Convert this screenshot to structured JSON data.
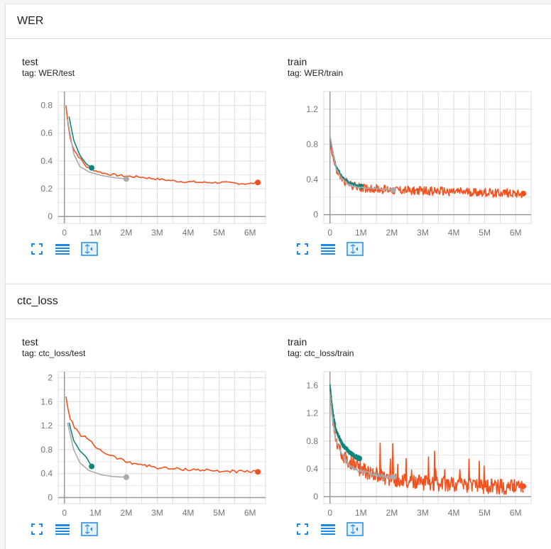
{
  "sections": [
    {
      "title": "WER",
      "cards": [
        {
          "title": "test",
          "tag": "tag: WER/test"
        },
        {
          "title": "train",
          "tag": "tag: WER/train"
        }
      ]
    },
    {
      "title": "ctc_loss",
      "cards": [
        {
          "title": "test",
          "tag": "tag: ctc_loss/test"
        },
        {
          "title": "train",
          "tag": "tag: ctc_loss/train"
        }
      ]
    }
  ],
  "colors": {
    "orange": "#f4511e",
    "teal": "#12847a",
    "gray": "#aaaaaa",
    "blue": "#1e88e5"
  },
  "icons": [
    "fit-icon",
    "log-scale-icon",
    "expand-icon"
  ],
  "chart_data": [
    {
      "type": "line",
      "title": "test",
      "xlim": [
        -0.2,
        6.5
      ],
      "ylim": [
        -0.05,
        0.9
      ],
      "xticks": [
        "0",
        "1M",
        "2M",
        "3M",
        "4M",
        "5M",
        "6M"
      ],
      "xtick_values": [
        0,
        1,
        2,
        3,
        4,
        5,
        6
      ],
      "yticks": [
        "0",
        "0.2",
        "0.4",
        "0.6",
        "0.8"
      ],
      "ytick_values": [
        0,
        0.2,
        0.4,
        0.6,
        0.8
      ],
      "series": [
        {
          "color": "orange",
          "noise": 0.008,
          "x": [
            0.05,
            0.15,
            0.3,
            0.5,
            0.7,
            1,
            1.3,
            1.6,
            2,
            2.4,
            2.8,
            3.2,
            3.6,
            4,
            4.5,
            5,
            5.5,
            6,
            6.25
          ],
          "y": [
            0.8,
            0.6,
            0.48,
            0.42,
            0.36,
            0.33,
            0.31,
            0.3,
            0.29,
            0.285,
            0.275,
            0.265,
            0.255,
            0.25,
            0.245,
            0.245,
            0.24,
            0.235,
            0.245
          ]
        },
        {
          "color": "teal",
          "noise": 0,
          "x": [
            0.15,
            0.3,
            0.5,
            0.7,
            0.88
          ],
          "y": [
            0.72,
            0.55,
            0.44,
            0.38,
            0.35
          ]
        },
        {
          "color": "gray",
          "noise": 0,
          "x": [
            0.1,
            0.3,
            0.5,
            0.8,
            1.2,
            1.6,
            2.0
          ],
          "y": [
            0.7,
            0.45,
            0.36,
            0.32,
            0.295,
            0.28,
            0.27
          ]
        }
      ]
    },
    {
      "type": "line",
      "title": "train",
      "xlim": [
        -0.2,
        6.5
      ],
      "ylim": [
        -0.1,
        1.4
      ],
      "xticks": [
        "0",
        "1M",
        "2M",
        "3M",
        "4M",
        "5M",
        "6M"
      ],
      "xtick_values": [
        0,
        1,
        2,
        3,
        4,
        5,
        6
      ],
      "yticks": [
        "0",
        "0.4",
        "0.8",
        "1.2"
      ],
      "ytick_values": [
        0,
        0.4,
        0.8,
        1.2
      ],
      "series": [
        {
          "color": "orange",
          "noise": 0.05,
          "x": [
            0,
            0.1,
            0.2,
            0.4,
            0.6,
            0.9,
            1.2,
            1.6,
            2,
            3,
            4,
            5,
            6,
            6.25
          ],
          "y": [
            0.85,
            0.65,
            0.5,
            0.4,
            0.35,
            0.31,
            0.3,
            0.29,
            0.28,
            0.27,
            0.26,
            0.25,
            0.245,
            0.24
          ]
        },
        {
          "color": "teal",
          "noise": 0.015,
          "x": [
            0,
            0.1,
            0.2,
            0.4,
            0.6,
            0.8,
            1.0
          ],
          "y": [
            0.88,
            0.7,
            0.55,
            0.43,
            0.37,
            0.34,
            0.32
          ]
        },
        {
          "color": "gray",
          "noise": 0.01,
          "x": [
            0,
            0.1,
            0.2,
            0.4,
            0.6,
            0.9,
            1.3,
            1.7,
            2.05
          ],
          "y": [
            0.9,
            0.7,
            0.52,
            0.4,
            0.34,
            0.31,
            0.3,
            0.29,
            0.28
          ]
        }
      ]
    },
    {
      "type": "line",
      "title": "test",
      "xlim": [
        -0.2,
        6.5
      ],
      "ylim": [
        -0.1,
        2.1
      ],
      "xticks": [
        "0",
        "1M",
        "2M",
        "3M",
        "4M",
        "5M",
        "6M"
      ],
      "xtick_values": [
        0,
        1,
        2,
        3,
        4,
        5,
        6
      ],
      "yticks": [
        "0",
        "0.4",
        "0.8",
        "1.2",
        "1.6",
        "2"
      ],
      "ytick_values": [
        0,
        0.4,
        0.8,
        1.2,
        1.6,
        2
      ],
      "series": [
        {
          "color": "orange",
          "noise": 0.025,
          "x": [
            0.05,
            0.15,
            0.3,
            0.5,
            0.7,
            1,
            1.3,
            1.6,
            2,
            2.5,
            3,
            3.5,
            4,
            4.5,
            5,
            5.5,
            6,
            6.25
          ],
          "y": [
            1.7,
            1.35,
            1.2,
            1.05,
            1.0,
            0.85,
            0.75,
            0.68,
            0.6,
            0.55,
            0.5,
            0.48,
            0.47,
            0.46,
            0.44,
            0.44,
            0.43,
            0.43
          ]
        },
        {
          "color": "teal",
          "noise": 0,
          "x": [
            0.15,
            0.3,
            0.5,
            0.7,
            0.88
          ],
          "y": [
            1.25,
            0.95,
            0.78,
            0.68,
            0.52
          ]
        },
        {
          "color": "gray",
          "noise": 0,
          "x": [
            0.1,
            0.3,
            0.5,
            0.8,
            1.2,
            1.6,
            2.0
          ],
          "y": [
            1.25,
            0.8,
            0.58,
            0.45,
            0.38,
            0.35,
            0.34
          ]
        }
      ]
    },
    {
      "type": "line",
      "title": "train",
      "xlim": [
        -0.2,
        6.5
      ],
      "ylim": [
        -0.1,
        1.8
      ],
      "xticks": [
        "0",
        "1M",
        "2M",
        "3M",
        "4M",
        "5M",
        "6M"
      ],
      "xtick_values": [
        0,
        1,
        2,
        3,
        4,
        5,
        6
      ],
      "yticks": [
        "0",
        "0.4",
        "0.8",
        "1.2",
        "1.6"
      ],
      "ytick_values": [
        0,
        0.4,
        0.8,
        1.2,
        1.6
      ],
      "series": [
        {
          "color": "orange",
          "noise": 0.11,
          "spikes": true,
          "x": [
            0,
            0.1,
            0.2,
            0.4,
            0.6,
            0.9,
            1.2,
            1.6,
            2,
            3,
            4,
            5,
            6,
            6.25
          ],
          "y": [
            1.55,
            1.1,
            0.8,
            0.6,
            0.5,
            0.42,
            0.36,
            0.3,
            0.25,
            0.2,
            0.17,
            0.15,
            0.14,
            0.15
          ]
        },
        {
          "color": "teal",
          "noise": 0.04,
          "x": [
            0,
            0.1,
            0.2,
            0.4,
            0.6,
            0.8,
            0.95
          ],
          "y": [
            1.6,
            1.2,
            0.95,
            0.75,
            0.65,
            0.58,
            0.55
          ]
        },
        {
          "color": "gray",
          "noise": 0.03,
          "x": [
            0,
            0.1,
            0.2,
            0.4,
            0.6,
            0.9,
            1.3,
            1.7,
            2.05
          ],
          "y": [
            1.5,
            1.05,
            0.8,
            0.6,
            0.45,
            0.38,
            0.33,
            0.3,
            0.28
          ]
        }
      ]
    }
  ]
}
